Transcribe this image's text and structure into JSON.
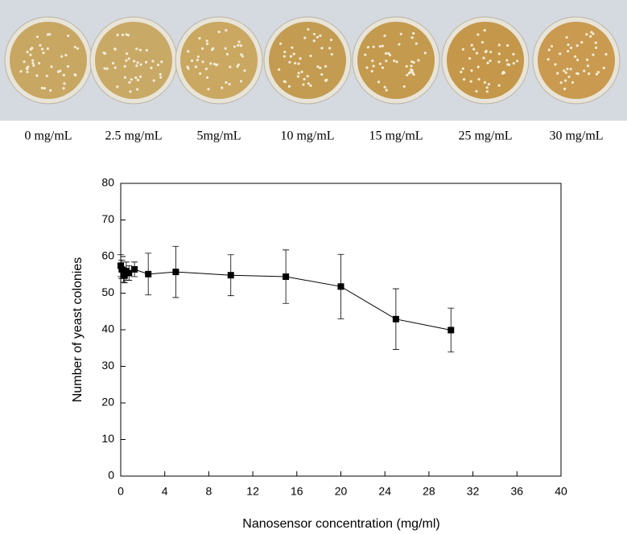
{
  "figure": {
    "plate_labels": [
      "0 mg/mL",
      "2.5 mg/mL",
      "5mg/mL",
      "10 mg/mL",
      "15 mg/mL",
      "25 mg/mL",
      "30 mg/mL"
    ]
  },
  "chart_data": {
    "type": "line",
    "x_label": "Nanosensor concentration (mg/ml)",
    "y_label": "Number of yeast colonies",
    "x": [
      0,
      0.1,
      0.25,
      0.35,
      0.5,
      0.75,
      1.25,
      2.5,
      5,
      10,
      15,
      20,
      25,
      30
    ],
    "values": [
      57.5,
      56.5,
      55,
      54.8,
      56,
      55.5,
      56.5,
      55.2,
      55.8,
      54.9,
      54.5,
      51.8,
      42.9,
      39.9
    ],
    "errors": [
      3,
      2.5,
      2,
      2,
      2.5,
      2,
      2,
      5.7,
      7,
      5.6,
      7.3,
      8.8,
      8.3,
      6
    ],
    "color": "#000000",
    "xlim": [
      0,
      40
    ],
    "xticks": [
      0,
      4,
      8,
      12,
      16,
      20,
      24,
      28,
      32,
      36,
      40
    ],
    "ylim": [
      0,
      80
    ],
    "yticks": [
      0,
      10,
      20,
      30,
      40,
      50,
      60,
      70,
      80
    ],
    "grid": false
  }
}
